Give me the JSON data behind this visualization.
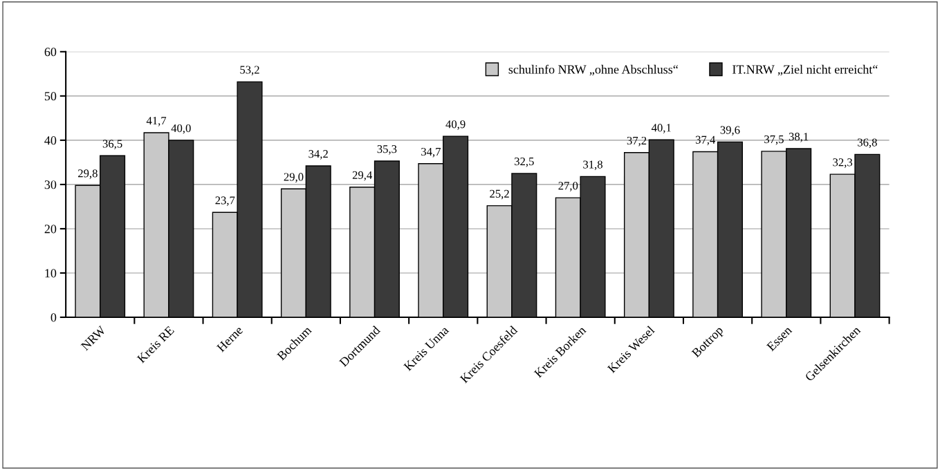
{
  "chart_data": {
    "type": "bar",
    "categories": [
      "NRW",
      "Kreis RE",
      "Herne",
      "Bochum",
      "Dortmund",
      "Kreis Unna",
      "Kreis Coesfeld",
      "Kreis Borken",
      "Kreis Wesel",
      "Bottrop",
      "Essen",
      "Gelsenkirchen"
    ],
    "series": [
      {
        "name": "schulinfo NRW „ohne Abschluss“",
        "color": "#c8c8c8",
        "values": [
          29.8,
          41.7,
          23.7,
          29.0,
          29.4,
          34.7,
          25.2,
          27.0,
          37.2,
          37.4,
          37.5,
          32.3
        ],
        "value_labels": [
          "29,8",
          "41,7",
          "23,7",
          "29,0",
          "29,4",
          "34,7",
          "25,2",
          "27,0",
          "37,2",
          "37,4",
          "37,5",
          "32,3"
        ]
      },
      {
        "name": "IT.NRW „Ziel nicht erreicht“",
        "color": "#3a3a3a",
        "values": [
          36.5,
          40.0,
          53.2,
          34.2,
          35.3,
          40.9,
          32.5,
          31.8,
          40.1,
          39.6,
          38.1,
          36.8
        ],
        "value_labels": [
          "36,5",
          "40,0",
          "53,2",
          "34,2",
          "35,3",
          "40,9",
          "32,5",
          "31,8",
          "40,1",
          "39,6",
          "38,1",
          "36,8"
        ]
      }
    ],
    "ylim": [
      0,
      60
    ],
    "yticks": [
      0,
      10,
      20,
      30,
      40,
      50,
      60
    ],
    "grid": "y",
    "legend": "top right"
  }
}
